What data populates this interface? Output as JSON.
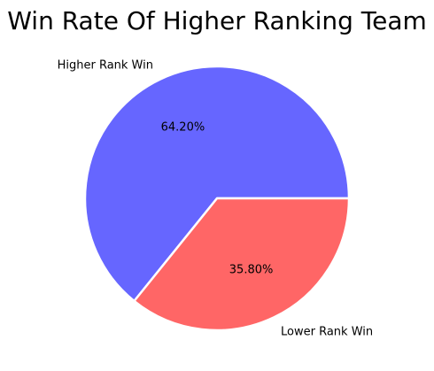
{
  "chart_data": {
    "type": "pie",
    "title": "Win Rate Of Higher Ranking Team",
    "slices": [
      {
        "label": "Higher Rank Win",
        "value": 64.2,
        "pct_label": "64.20%",
        "color": "#6666ff"
      },
      {
        "label": "Lower Rank Win",
        "value": 35.8,
        "pct_label": "35.80%",
        "color": "#ff6666"
      }
    ],
    "start_angle_deg": 0,
    "direction": "counterclockwise",
    "slice_edge_color": "#ffffff"
  }
}
